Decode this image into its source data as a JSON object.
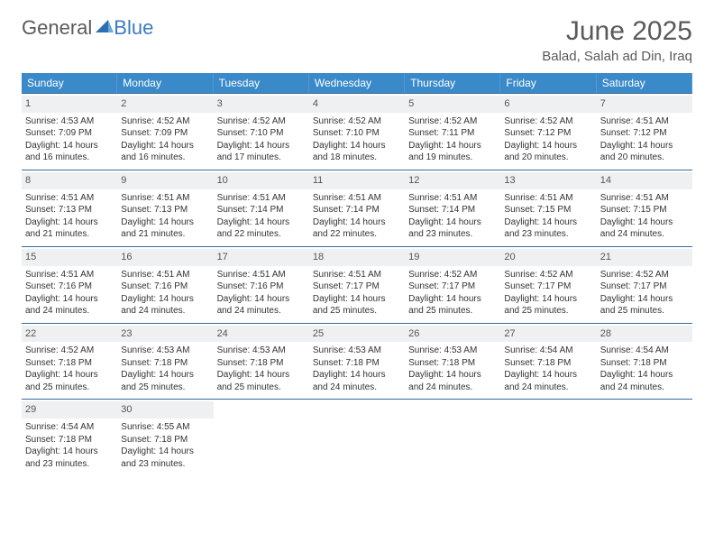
{
  "logo": {
    "word1": "General",
    "word2": "Blue"
  },
  "title": "June 2025",
  "location": "Balad, Salah ad Din, Iraq",
  "colors": {
    "header_bg": "#3a8ac9",
    "header_text": "#ffffff",
    "row_border": "#3a6a9a",
    "daynum_bg": "#eef0f2",
    "text": "#333333",
    "logo_gray": "#5a5a5a",
    "logo_blue": "#3a7bbf"
  },
  "typography": {
    "title_fontsize": 30,
    "location_fontsize": 15,
    "weekday_fontsize": 12,
    "cell_fontsize": 10
  },
  "weekdays": [
    "Sunday",
    "Monday",
    "Tuesday",
    "Wednesday",
    "Thursday",
    "Friday",
    "Saturday"
  ],
  "weeks": [
    [
      {
        "num": "1",
        "sunrise": "Sunrise: 4:53 AM",
        "sunset": "Sunset: 7:09 PM",
        "daylight": "Daylight: 14 hours and 16 minutes."
      },
      {
        "num": "2",
        "sunrise": "Sunrise: 4:52 AM",
        "sunset": "Sunset: 7:09 PM",
        "daylight": "Daylight: 14 hours and 16 minutes."
      },
      {
        "num": "3",
        "sunrise": "Sunrise: 4:52 AM",
        "sunset": "Sunset: 7:10 PM",
        "daylight": "Daylight: 14 hours and 17 minutes."
      },
      {
        "num": "4",
        "sunrise": "Sunrise: 4:52 AM",
        "sunset": "Sunset: 7:10 PM",
        "daylight": "Daylight: 14 hours and 18 minutes."
      },
      {
        "num": "5",
        "sunrise": "Sunrise: 4:52 AM",
        "sunset": "Sunset: 7:11 PM",
        "daylight": "Daylight: 14 hours and 19 minutes."
      },
      {
        "num": "6",
        "sunrise": "Sunrise: 4:52 AM",
        "sunset": "Sunset: 7:12 PM",
        "daylight": "Daylight: 14 hours and 20 minutes."
      },
      {
        "num": "7",
        "sunrise": "Sunrise: 4:51 AM",
        "sunset": "Sunset: 7:12 PM",
        "daylight": "Daylight: 14 hours and 20 minutes."
      }
    ],
    [
      {
        "num": "8",
        "sunrise": "Sunrise: 4:51 AM",
        "sunset": "Sunset: 7:13 PM",
        "daylight": "Daylight: 14 hours and 21 minutes."
      },
      {
        "num": "9",
        "sunrise": "Sunrise: 4:51 AM",
        "sunset": "Sunset: 7:13 PM",
        "daylight": "Daylight: 14 hours and 21 minutes."
      },
      {
        "num": "10",
        "sunrise": "Sunrise: 4:51 AM",
        "sunset": "Sunset: 7:14 PM",
        "daylight": "Daylight: 14 hours and 22 minutes."
      },
      {
        "num": "11",
        "sunrise": "Sunrise: 4:51 AM",
        "sunset": "Sunset: 7:14 PM",
        "daylight": "Daylight: 14 hours and 22 minutes."
      },
      {
        "num": "12",
        "sunrise": "Sunrise: 4:51 AM",
        "sunset": "Sunset: 7:14 PM",
        "daylight": "Daylight: 14 hours and 23 minutes."
      },
      {
        "num": "13",
        "sunrise": "Sunrise: 4:51 AM",
        "sunset": "Sunset: 7:15 PM",
        "daylight": "Daylight: 14 hours and 23 minutes."
      },
      {
        "num": "14",
        "sunrise": "Sunrise: 4:51 AM",
        "sunset": "Sunset: 7:15 PM",
        "daylight": "Daylight: 14 hours and 24 minutes."
      }
    ],
    [
      {
        "num": "15",
        "sunrise": "Sunrise: 4:51 AM",
        "sunset": "Sunset: 7:16 PM",
        "daylight": "Daylight: 14 hours and 24 minutes."
      },
      {
        "num": "16",
        "sunrise": "Sunrise: 4:51 AM",
        "sunset": "Sunset: 7:16 PM",
        "daylight": "Daylight: 14 hours and 24 minutes."
      },
      {
        "num": "17",
        "sunrise": "Sunrise: 4:51 AM",
        "sunset": "Sunset: 7:16 PM",
        "daylight": "Daylight: 14 hours and 24 minutes."
      },
      {
        "num": "18",
        "sunrise": "Sunrise: 4:51 AM",
        "sunset": "Sunset: 7:17 PM",
        "daylight": "Daylight: 14 hours and 25 minutes."
      },
      {
        "num": "19",
        "sunrise": "Sunrise: 4:52 AM",
        "sunset": "Sunset: 7:17 PM",
        "daylight": "Daylight: 14 hours and 25 minutes."
      },
      {
        "num": "20",
        "sunrise": "Sunrise: 4:52 AM",
        "sunset": "Sunset: 7:17 PM",
        "daylight": "Daylight: 14 hours and 25 minutes."
      },
      {
        "num": "21",
        "sunrise": "Sunrise: 4:52 AM",
        "sunset": "Sunset: 7:17 PM",
        "daylight": "Daylight: 14 hours and 25 minutes."
      }
    ],
    [
      {
        "num": "22",
        "sunrise": "Sunrise: 4:52 AM",
        "sunset": "Sunset: 7:18 PM",
        "daylight": "Daylight: 14 hours and 25 minutes."
      },
      {
        "num": "23",
        "sunrise": "Sunrise: 4:53 AM",
        "sunset": "Sunset: 7:18 PM",
        "daylight": "Daylight: 14 hours and 25 minutes."
      },
      {
        "num": "24",
        "sunrise": "Sunrise: 4:53 AM",
        "sunset": "Sunset: 7:18 PM",
        "daylight": "Daylight: 14 hours and 25 minutes."
      },
      {
        "num": "25",
        "sunrise": "Sunrise: 4:53 AM",
        "sunset": "Sunset: 7:18 PM",
        "daylight": "Daylight: 14 hours and 24 minutes."
      },
      {
        "num": "26",
        "sunrise": "Sunrise: 4:53 AM",
        "sunset": "Sunset: 7:18 PM",
        "daylight": "Daylight: 14 hours and 24 minutes."
      },
      {
        "num": "27",
        "sunrise": "Sunrise: 4:54 AM",
        "sunset": "Sunset: 7:18 PM",
        "daylight": "Daylight: 14 hours and 24 minutes."
      },
      {
        "num": "28",
        "sunrise": "Sunrise: 4:54 AM",
        "sunset": "Sunset: 7:18 PM",
        "daylight": "Daylight: 14 hours and 24 minutes."
      }
    ],
    [
      {
        "num": "29",
        "sunrise": "Sunrise: 4:54 AM",
        "sunset": "Sunset: 7:18 PM",
        "daylight": "Daylight: 14 hours and 23 minutes."
      },
      {
        "num": "30",
        "sunrise": "Sunrise: 4:55 AM",
        "sunset": "Sunset: 7:18 PM",
        "daylight": "Daylight: 14 hours and 23 minutes."
      },
      null,
      null,
      null,
      null,
      null
    ]
  ]
}
